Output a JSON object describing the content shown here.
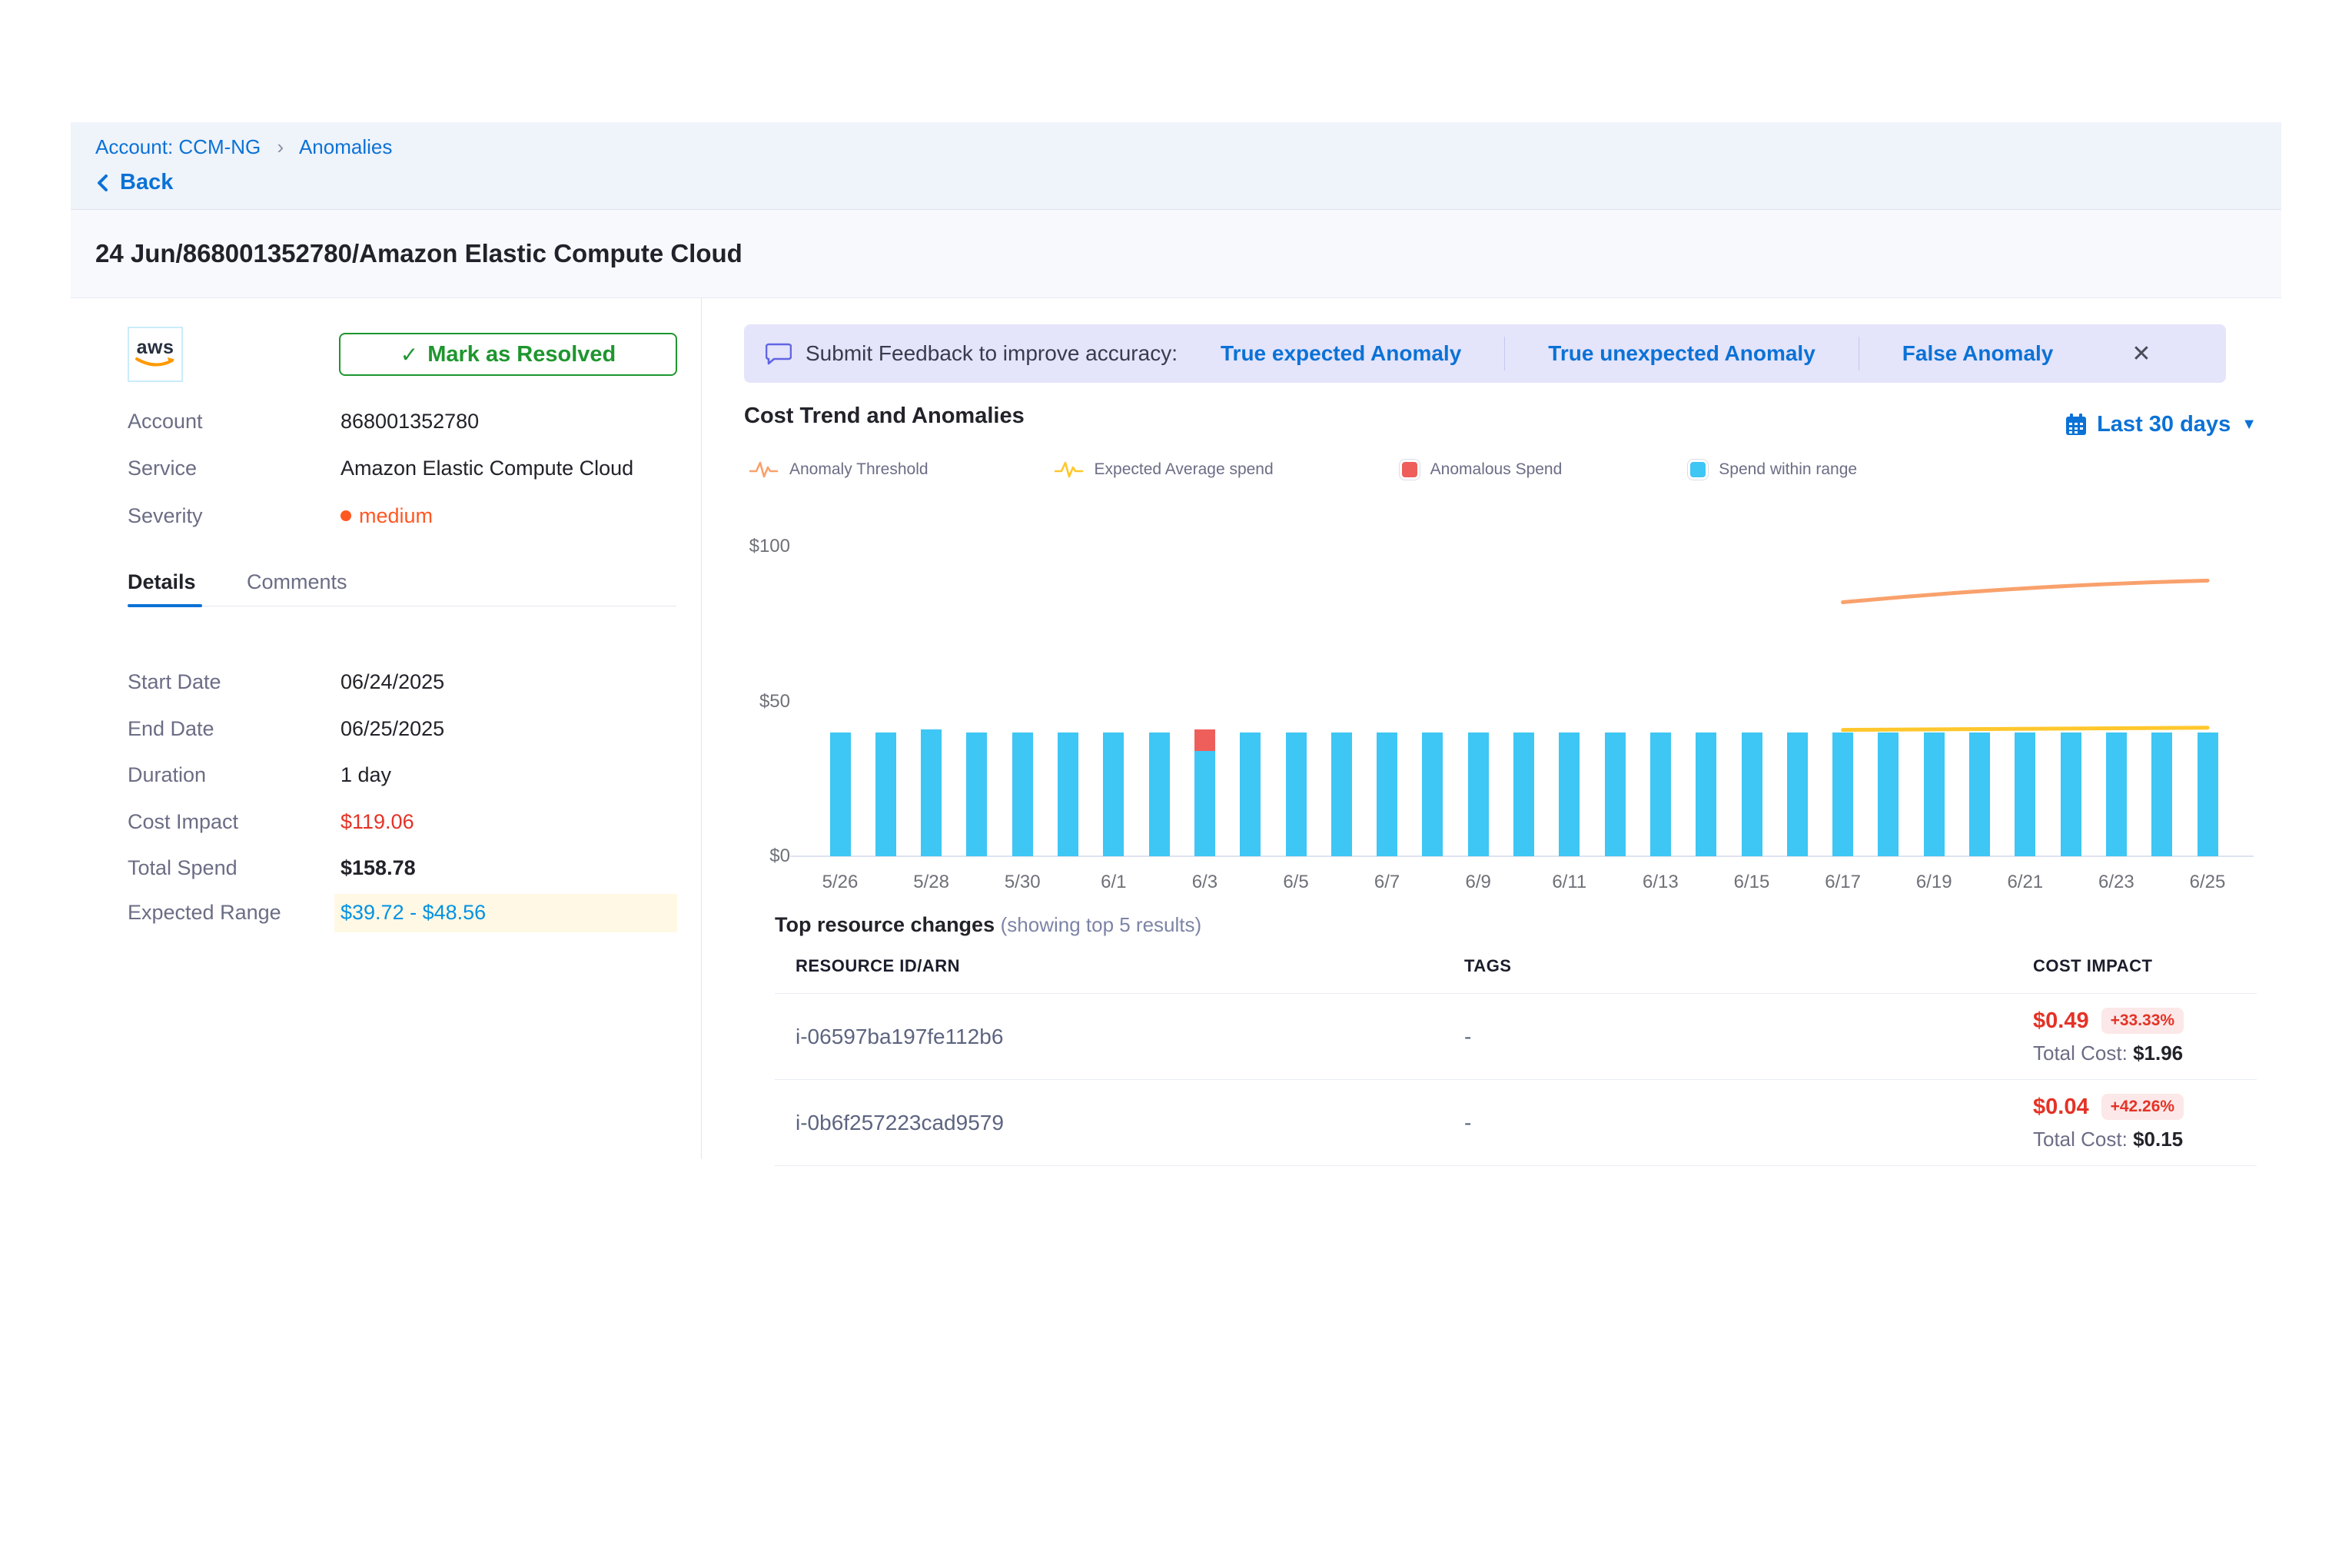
{
  "breadcrumb": {
    "account": "Account: CCM-NG",
    "current": "Anomalies",
    "back_label": "Back"
  },
  "page": {
    "title": "24 Jun/868001352780/Amazon Elastic Compute Cloud"
  },
  "left_panel": {
    "provider_logo": "aws",
    "resolve_button": "Mark as Resolved",
    "fields": [
      {
        "label": "Account",
        "value": "868001352780"
      },
      {
        "label": "Service",
        "value": "Amazon Elastic Compute Cloud"
      },
      {
        "label": "Severity",
        "value": "medium",
        "style": "severity"
      }
    ],
    "tabs": [
      {
        "label": "Details",
        "active": true
      },
      {
        "label": "Comments",
        "active": false
      }
    ],
    "details": [
      {
        "label": "Start Date",
        "value": "06/24/2025"
      },
      {
        "label": "End Date",
        "value": "06/25/2025"
      },
      {
        "label": "Duration",
        "value": "1 day"
      },
      {
        "label": "Cost Impact",
        "value": "$119.06",
        "style": "red"
      },
      {
        "label": "Total Spend",
        "value": "$158.78",
        "style": "bold"
      },
      {
        "label": "Expected Range",
        "value": "$39.72 - $48.56",
        "style": "range"
      }
    ]
  },
  "feedback_banner": {
    "prompt": "Submit Feedback to improve accuracy:",
    "options": [
      "True expected Anomaly",
      "True unexpected Anomaly",
      "False Anomaly"
    ]
  },
  "chart_section": {
    "title": "Cost Trend and Anomalies",
    "time_range": "Last 30 days",
    "legend": [
      {
        "label": "Anomaly Threshold",
        "type": "line",
        "color": "#F9A16C"
      },
      {
        "label": "Expected Average spend",
        "type": "line",
        "color": "#FFC72C"
      },
      {
        "label": "Anomalous Spend",
        "type": "square",
        "color": "#EE5F5B"
      },
      {
        "label": "Spend within range",
        "type": "square",
        "color": "#3EC6F4"
      }
    ]
  },
  "chart_data": {
    "type": "bar",
    "title": "Cost Trend and Anomalies",
    "ylim": [
      0,
      100
    ],
    "ytick_labels": [
      "$0",
      "$50",
      "$100"
    ],
    "yticks": [
      0,
      50,
      100
    ],
    "grid": false,
    "legend_position": "top",
    "categories": [
      "5/26",
      "5/27",
      "5/28",
      "5/29",
      "5/30",
      "5/31",
      "6/1",
      "6/2",
      "6/3",
      "6/4",
      "6/5",
      "6/6",
      "6/7",
      "6/8",
      "6/9",
      "6/10",
      "6/11",
      "6/12",
      "6/13",
      "6/14",
      "6/15",
      "6/16",
      "6/17",
      "6/18",
      "6/19",
      "6/20",
      "6/21",
      "6/22",
      "6/23",
      "6/24",
      "6/25"
    ],
    "xtick_every": 2,
    "series": [
      {
        "name": "Spend within range",
        "color": "#3EC6F4",
        "values": [
          40,
          40,
          41,
          40,
          40,
          40,
          40,
          40,
          34,
          40,
          40,
          40,
          40,
          40,
          40,
          40,
          40,
          40,
          40,
          40,
          40,
          40,
          40,
          40,
          40,
          40,
          40,
          40,
          40,
          40,
          40
        ]
      },
      {
        "name": "Anomalous Spend",
        "color": "#EE5F5B",
        "values": [
          0,
          0,
          0,
          0,
          0,
          0,
          0,
          0,
          7,
          0,
          0,
          0,
          0,
          0,
          0,
          0,
          0,
          0,
          0,
          0,
          0,
          0,
          0,
          0,
          0,
          0,
          0,
          0,
          0,
          0,
          0
        ]
      }
    ],
    "lines": [
      {
        "name": "Anomaly Threshold",
        "color": "#F9A16C",
        "points": [
          {
            "x": "6/17",
            "y": 82
          },
          {
            "x": "6/21",
            "y": 86.5
          },
          {
            "x": "6/25",
            "y": 89
          }
        ]
      },
      {
        "name": "Expected Average spend",
        "color": "#FFC72C",
        "points": [
          {
            "x": "6/17",
            "y": 40.8
          },
          {
            "x": "6/25",
            "y": 41.5
          }
        ]
      }
    ]
  },
  "resources_table": {
    "title": "Top resource changes",
    "subtitle": "(showing top 5 results)",
    "columns": [
      "RESOURCE ID/ARN",
      "TAGS",
      "COST IMPACT"
    ],
    "rows": [
      {
        "resource_id": "i-06597ba197fe112b6",
        "tags": "-",
        "cost_impact": "$0.49",
        "change_pct": "+33.33%",
        "total_cost_label": "Total Cost:",
        "total_cost": "$1.96"
      },
      {
        "resource_id": "i-0b6f257223cad9579",
        "tags": "-",
        "cost_impact": "$0.04",
        "change_pct": "+42.26%",
        "total_cost_label": "Total Cost:",
        "total_cost": "$0.15"
      }
    ]
  }
}
